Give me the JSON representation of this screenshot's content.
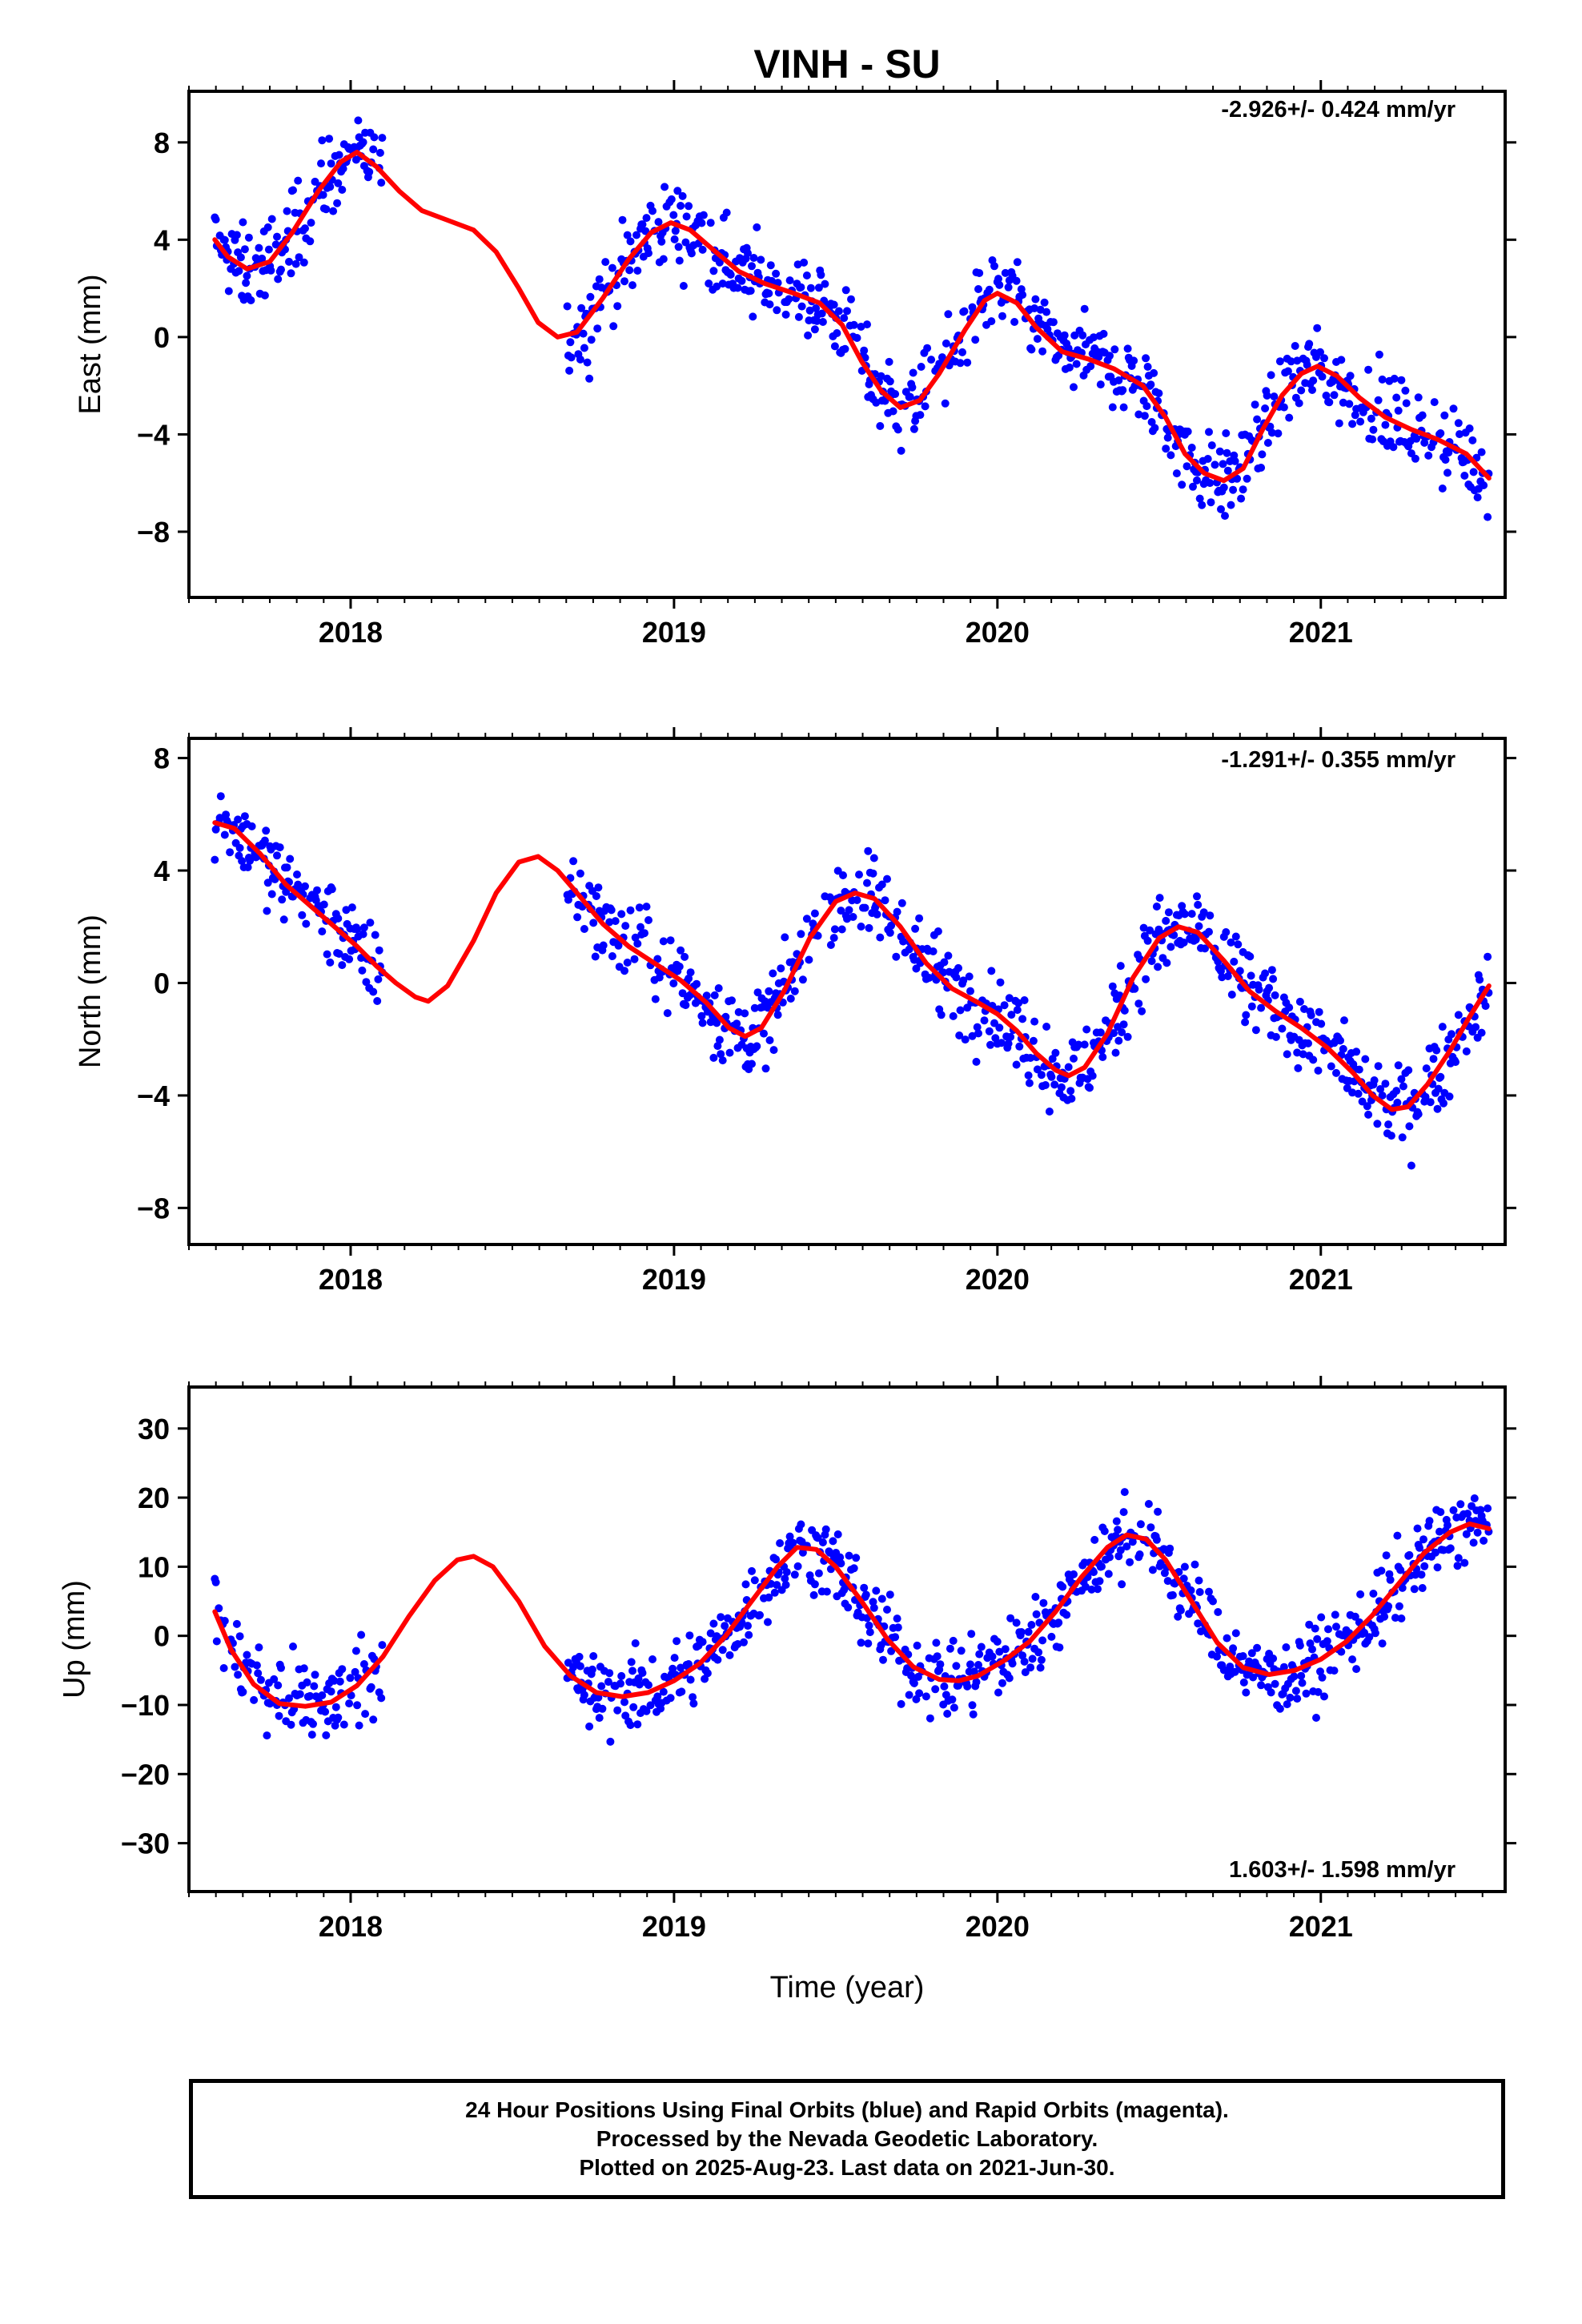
{
  "title": "VINH - SU",
  "xlabel": "Time (year)",
  "footer": {
    "line1": "24 Hour Positions Using Final Orbits (blue) and Rapid Orbits (magenta).",
    "line2": "Processed by the Nevada Geodetic Laboratory.",
    "line3": "Plotted on 2025-Aug-23. Last data on 2021-Jun-30."
  },
  "colors": {
    "points": "#0000ff",
    "model": "#ff0000"
  },
  "chart_data": [
    {
      "type": "scatter",
      "ylabel": "East (mm)",
      "rate": "-2.926+/- 0.424 mm/yr",
      "xlim": [
        2017.5,
        2021.57
      ],
      "ylim": [
        -10.7,
        10.1
      ],
      "yticks": [
        8,
        4,
        0,
        -4,
        -8
      ],
      "xticks": [
        2018,
        2019,
        2020,
        2021
      ],
      "model": [
        [
          2017.58,
          4.0
        ],
        [
          2017.62,
          3.3
        ],
        [
          2017.68,
          2.8
        ],
        [
          2017.75,
          3.1
        ],
        [
          2017.82,
          4.3
        ],
        [
          2017.9,
          6.0
        ],
        [
          2017.97,
          7.2
        ],
        [
          2018.02,
          7.6
        ],
        [
          2018.08,
          7.0
        ],
        [
          2018.15,
          6.0
        ],
        [
          2018.22,
          5.2
        ],
        [
          2018.3,
          4.8
        ],
        [
          2018.38,
          4.4
        ],
        [
          2018.45,
          3.5
        ],
        [
          2018.52,
          2.0
        ],
        [
          2018.58,
          0.6
        ],
        [
          2018.64,
          0.0
        ],
        [
          2018.7,
          0.2
        ],
        [
          2018.78,
          1.6
        ],
        [
          2018.86,
          3.2
        ],
        [
          2018.93,
          4.3
        ],
        [
          2018.99,
          4.7
        ],
        [
          2019.05,
          4.4
        ],
        [
          2019.12,
          3.6
        ],
        [
          2019.2,
          2.7
        ],
        [
          2019.28,
          2.2
        ],
        [
          2019.37,
          1.8
        ],
        [
          2019.45,
          1.4
        ],
        [
          2019.52,
          0.5
        ],
        [
          2019.58,
          -1.0
        ],
        [
          2019.64,
          -2.2
        ],
        [
          2019.7,
          -2.9
        ],
        [
          2019.76,
          -2.6
        ],
        [
          2019.82,
          -1.5
        ],
        [
          2019.9,
          0.3
        ],
        [
          2019.96,
          1.5
        ],
        [
          2020.0,
          1.8
        ],
        [
          2020.06,
          1.4
        ],
        [
          2020.12,
          0.4
        ],
        [
          2020.2,
          -0.6
        ],
        [
          2020.28,
          -0.9
        ],
        [
          2020.36,
          -1.3
        ],
        [
          2020.45,
          -2.0
        ],
        [
          2020.52,
          -3.3
        ],
        [
          2020.58,
          -4.8
        ],
        [
          2020.64,
          -5.6
        ],
        [
          2020.7,
          -5.9
        ],
        [
          2020.76,
          -5.4
        ],
        [
          2020.82,
          -3.8
        ],
        [
          2020.88,
          -2.4
        ],
        [
          2020.94,
          -1.5
        ],
        [
          2020.99,
          -1.2
        ],
        [
          2021.05,
          -1.6
        ],
        [
          2021.12,
          -2.5
        ],
        [
          2021.2,
          -3.3
        ],
        [
          2021.28,
          -3.8
        ],
        [
          2021.36,
          -4.2
        ],
        [
          2021.45,
          -4.8
        ],
        [
          2021.52,
          -5.8
        ]
      ],
      "segments": [
        [
          2017.58,
          2018.1,
          1.6
        ],
        [
          2018.67,
          2021.52,
          1.5
        ]
      ]
    },
    {
      "type": "scatter",
      "ylabel": "North (mm)",
      "rate": "-1.291+/- 0.355 mm/yr",
      "xlim": [
        2017.5,
        2021.57
      ],
      "ylim": [
        -9.3,
        8.7
      ],
      "yticks": [
        8,
        4,
        0,
        -4,
        -8
      ],
      "xticks": [
        2018,
        2019,
        2020,
        2021
      ],
      "model": [
        [
          2017.58,
          5.7
        ],
        [
          2017.64,
          5.5
        ],
        [
          2017.72,
          4.6
        ],
        [
          2017.8,
          3.5
        ],
        [
          2017.88,
          2.7
        ],
        [
          2017.95,
          2.0
        ],
        [
          2018.02,
          1.3
        ],
        [
          2018.08,
          0.6
        ],
        [
          2018.14,
          0.0
        ],
        [
          2018.2,
          -0.5
        ],
        [
          2018.24,
          -0.65
        ],
        [
          2018.3,
          -0.1
        ],
        [
          2018.38,
          1.5
        ],
        [
          2018.45,
          3.2
        ],
        [
          2018.52,
          4.3
        ],
        [
          2018.58,
          4.5
        ],
        [
          2018.64,
          4.0
        ],
        [
          2018.7,
          3.2
        ],
        [
          2018.78,
          2.1
        ],
        [
          2018.86,
          1.3
        ],
        [
          2018.94,
          0.7
        ],
        [
          2019.02,
          0.1
        ],
        [
          2019.1,
          -0.7
        ],
        [
          2019.17,
          -1.6
        ],
        [
          2019.22,
          -1.9
        ],
        [
          2019.27,
          -1.6
        ],
        [
          2019.34,
          -0.3
        ],
        [
          2019.42,
          1.6
        ],
        [
          2019.5,
          2.9
        ],
        [
          2019.56,
          3.2
        ],
        [
          2019.62,
          3.0
        ],
        [
          2019.7,
          2.0
        ],
        [
          2019.78,
          0.7
        ],
        [
          2019.86,
          -0.2
        ],
        [
          2019.94,
          -0.7
        ],
        [
          2020.0,
          -1.1
        ],
        [
          2020.06,
          -1.7
        ],
        [
          2020.12,
          -2.5
        ],
        [
          2020.18,
          -3.1
        ],
        [
          2020.22,
          -3.3
        ],
        [
          2020.27,
          -3.0
        ],
        [
          2020.34,
          -1.8
        ],
        [
          2020.42,
          0.2
        ],
        [
          2020.5,
          1.6
        ],
        [
          2020.56,
          2.0
        ],
        [
          2020.62,
          1.8
        ],
        [
          2020.7,
          0.8
        ],
        [
          2020.78,
          -0.3
        ],
        [
          2020.86,
          -1.0
        ],
        [
          2020.94,
          -1.6
        ],
        [
          2021.02,
          -2.3
        ],
        [
          2021.1,
          -3.2
        ],
        [
          2021.16,
          -4.0
        ],
        [
          2021.22,
          -4.5
        ],
        [
          2021.27,
          -4.4
        ],
        [
          2021.33,
          -3.6
        ],
        [
          2021.4,
          -2.4
        ],
        [
          2021.46,
          -1.2
        ],
        [
          2021.52,
          -0.1
        ]
      ],
      "segments": [
        [
          2017.58,
          2018.1,
          1.3
        ],
        [
          2018.67,
          2021.52,
          1.3
        ]
      ]
    },
    {
      "type": "scatter",
      "ylabel": "Up (mm)",
      "rate": "1.603+/- 1.598 mm/yr",
      "xlim": [
        2017.5,
        2021.57
      ],
      "ylim": [
        -37,
        36
      ],
      "yticks": [
        30,
        20,
        10,
        0,
        -10,
        -20,
        -30
      ],
      "xticks": [
        2018,
        2019,
        2020,
        2021
      ],
      "model": [
        [
          2017.58,
          3.5
        ],
        [
          2017.63,
          -2.0
        ],
        [
          2017.7,
          -7.0
        ],
        [
          2017.78,
          -9.8
        ],
        [
          2017.86,
          -10.2
        ],
        [
          2017.94,
          -9.6
        ],
        [
          2018.02,
          -7.2
        ],
        [
          2018.1,
          -3.0
        ],
        [
          2018.18,
          2.8
        ],
        [
          2018.26,
          8.0
        ],
        [
          2018.33,
          11.0
        ],
        [
          2018.38,
          11.5
        ],
        [
          2018.44,
          10.0
        ],
        [
          2018.52,
          5.0
        ],
        [
          2018.6,
          -1.5
        ],
        [
          2018.68,
          -5.8
        ],
        [
          2018.76,
          -8.2
        ],
        [
          2018.84,
          -8.8
        ],
        [
          2018.92,
          -8.2
        ],
        [
          2019.0,
          -6.5
        ],
        [
          2019.08,
          -4.0
        ],
        [
          2019.16,
          0.0
        ],
        [
          2019.24,
          5.0
        ],
        [
          2019.32,
          10.0
        ],
        [
          2019.38,
          12.8
        ],
        [
          2019.44,
          12.5
        ],
        [
          2019.5,
          10.0
        ],
        [
          2019.58,
          5.0
        ],
        [
          2019.66,
          -0.5
        ],
        [
          2019.74,
          -4.5
        ],
        [
          2019.82,
          -6.3
        ],
        [
          2019.88,
          -6.5
        ],
        [
          2019.94,
          -5.8
        ],
        [
          2020.02,
          -3.6
        ],
        [
          2020.1,
          -0.8
        ],
        [
          2020.18,
          3.5
        ],
        [
          2020.26,
          8.5
        ],
        [
          2020.34,
          12.8
        ],
        [
          2020.4,
          14.6
        ],
        [
          2020.46,
          14.0
        ],
        [
          2020.52,
          11.0
        ],
        [
          2020.6,
          5.0
        ],
        [
          2020.68,
          -1.0
        ],
        [
          2020.76,
          -4.6
        ],
        [
          2020.84,
          -5.6
        ],
        [
          2020.92,
          -5.0
        ],
        [
          2021.0,
          -3.4
        ],
        [
          2021.08,
          -0.8
        ],
        [
          2021.16,
          3.0
        ],
        [
          2021.24,
          7.5
        ],
        [
          2021.32,
          12.0
        ],
        [
          2021.4,
          15.0
        ],
        [
          2021.46,
          16.2
        ],
        [
          2021.52,
          15.5
        ]
      ],
      "segments": [
        [
          2017.58,
          2018.1,
          5.5
        ],
        [
          2018.67,
          2021.52,
          5.0
        ]
      ]
    }
  ]
}
